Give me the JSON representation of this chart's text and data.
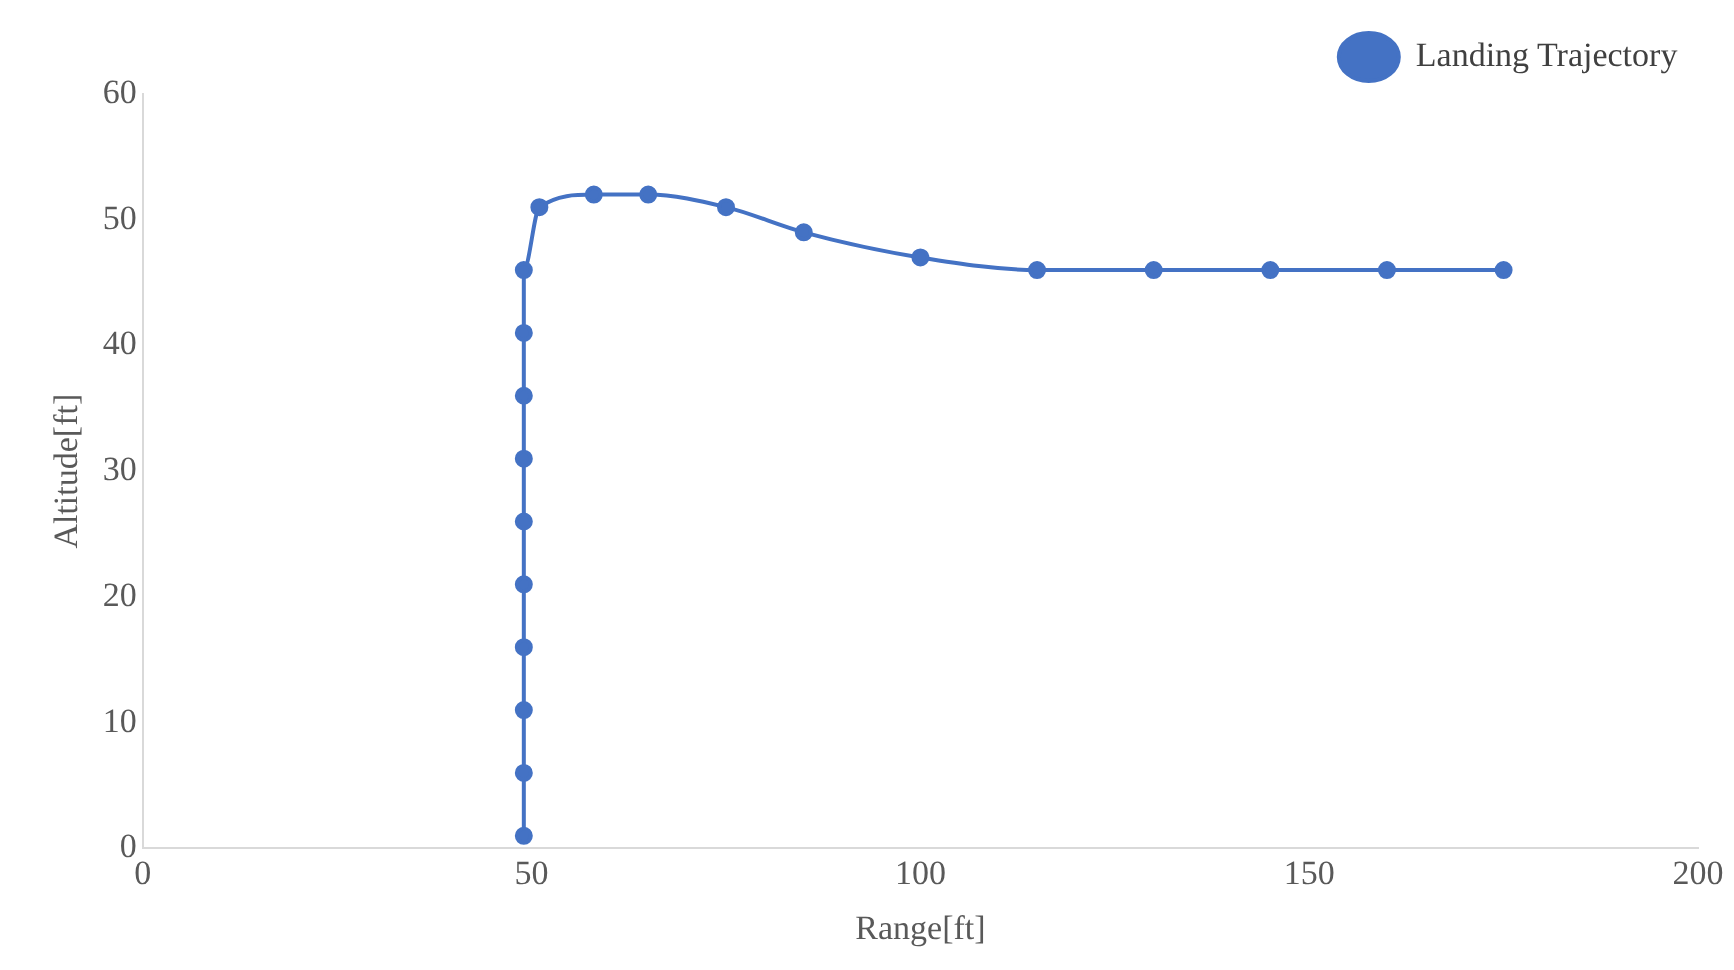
{
  "chart_data": {
    "type": "scatter",
    "xlabel": "Range[ft]",
    "ylabel": "Altitude[ft]",
    "series": [
      {
        "name": "Landing Trajectory",
        "color": "#4472c4",
        "type": "line",
        "x": [
          49,
          49,
          49,
          49,
          49,
          49,
          49,
          49,
          49,
          49,
          51,
          58,
          65,
          75,
          85,
          100,
          115,
          130,
          145,
          160,
          175
        ],
        "values": [
          1,
          6,
          11,
          16,
          21,
          26,
          31,
          36,
          41,
          46,
          51,
          52,
          52,
          51,
          49,
          47,
          46,
          46,
          46,
          46,
          46
        ]
      }
    ],
    "xlim": [
      0,
      200
    ],
    "xticks": [
      0,
      50,
      100,
      150,
      200
    ],
    "ylim": [
      0,
      60
    ],
    "yticks": [
      0,
      10,
      20,
      30,
      40,
      50,
      60
    ],
    "grid": false,
    "legend": "top right",
    "marker": "circle",
    "line_style": "solid"
  }
}
